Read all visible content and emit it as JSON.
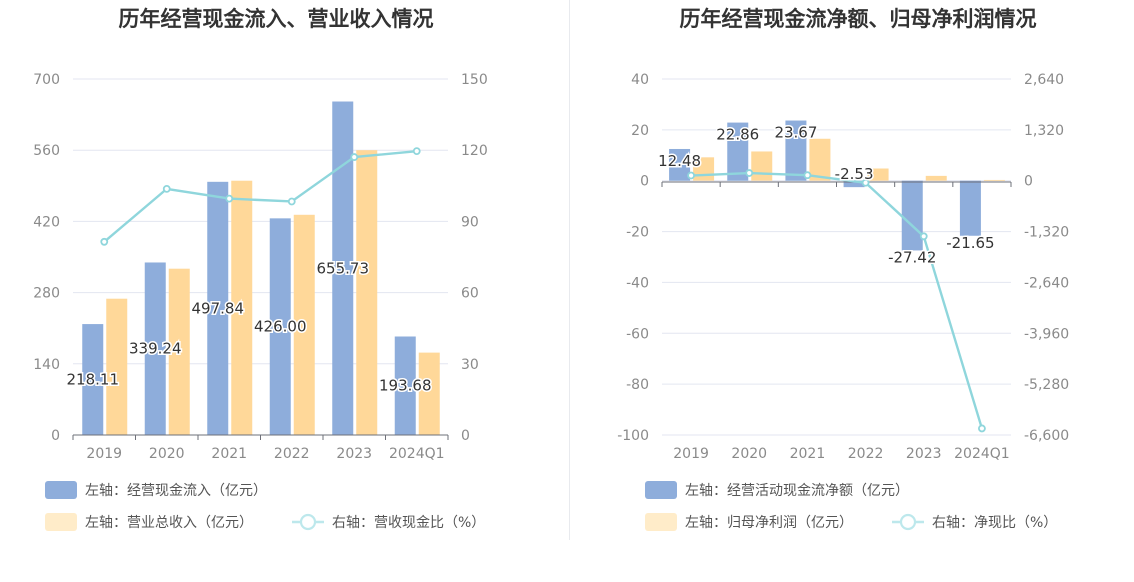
{
  "charts": [
    {
      "title": "历年经营现金流入、营业收入情况",
      "legend": {
        "bar1": "左轴：经营现金流入（亿元）",
        "bar2": "左轴：营业总收入（亿元）",
        "line": "右轴：营收现金比（%）"
      }
    },
    {
      "title": "历年经营现金流净额、归母净利润情况",
      "legend": {
        "bar1": "左轴：经营活动现金流净额（亿元）",
        "bar2": "左轴：归母净利润（亿元）",
        "line": "右轴：净现比（%）"
      }
    }
  ],
  "chart_data": [
    {
      "type": "bar",
      "title": "历年经营现金流入、营业收入情况",
      "categories": [
        "2019",
        "2020",
        "2021",
        "2022",
        "2023",
        "2024Q1"
      ],
      "left_axis": {
        "min": 0,
        "max": 700,
        "ticks": [
          "0",
          "140",
          "280",
          "420",
          "560",
          "700"
        ]
      },
      "right_axis": {
        "min": 0,
        "max": 150,
        "ticks": [
          "0",
          "30",
          "60",
          "90",
          "120",
          "150"
        ]
      },
      "series": [
        {
          "name": "左轴：经营现金流入（亿元）",
          "kind": "bar",
          "axis": "left",
          "color": "#8eaddb",
          "values": [
            218.11,
            339.24,
            497.84,
            426.0,
            655.73,
            193.68
          ],
          "labels": [
            "218.11",
            "339.24",
            "497.84",
            "426.00",
            "655.73",
            "193.68"
          ]
        },
        {
          "name": "左轴：营业总收入（亿元）",
          "kind": "bar",
          "axis": "left",
          "color": "#ffd899",
          "values": [
            268,
            327,
            500,
            433,
            560,
            162
          ]
        },
        {
          "name": "右轴：营收现金比（%）",
          "kind": "line",
          "axis": "right",
          "color": "#8fd6dc",
          "values": [
            81.4,
            103.7,
            99.6,
            98.4,
            117.1,
            119.6
          ]
        }
      ]
    },
    {
      "type": "bar",
      "title": "历年经营现金流净额、归母净利润情况",
      "categories": [
        "2019",
        "2020",
        "2021",
        "2022",
        "2023",
        "2024Q1"
      ],
      "left_axis": {
        "min": -100,
        "max": 40,
        "ticks": [
          "-100",
          "-80",
          "-60",
          "-40",
          "-20",
          "0",
          "20",
          "40"
        ]
      },
      "right_axis": {
        "min": -6600,
        "max": 2640,
        "ticks": [
          "-6,600",
          "-5,280",
          "-3,960",
          "-2,640",
          "-1,320",
          "0",
          "1,320",
          "2,640"
        ]
      },
      "series": [
        {
          "name": "左轴：经营活动现金流净额（亿元）",
          "kind": "bar",
          "axis": "left",
          "color": "#8eaddb",
          "values": [
            12.48,
            22.86,
            23.67,
            -2.53,
            -27.42,
            -21.65
          ],
          "labels": [
            "12.48",
            "22.86",
            "23.67",
            "-2.53",
            "-27.42",
            "-21.65"
          ]
        },
        {
          "name": "左轴：归母净利润（亿元）",
          "kind": "bar",
          "axis": "left",
          "color": "#ffd899",
          "values": [
            9.2,
            11.5,
            16.5,
            4.8,
            1.9,
            0.3
          ]
        },
        {
          "name": "右轴：净现比（%）",
          "kind": "line",
          "axis": "right",
          "color": "#8fd6dc",
          "values": [
            135,
            199,
            143,
            -53,
            -1443,
            -6430
          ]
        }
      ]
    }
  ]
}
